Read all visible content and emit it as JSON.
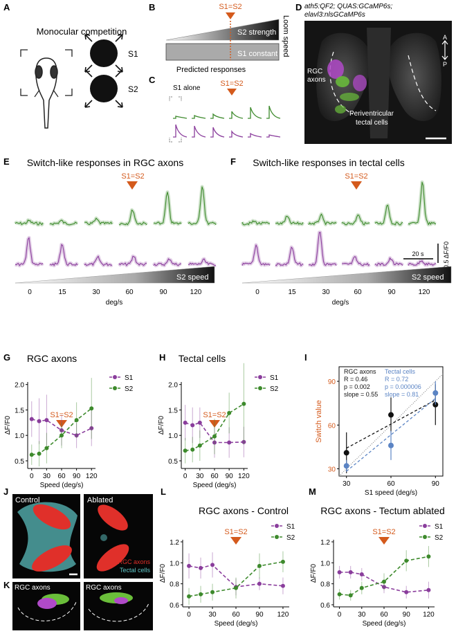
{
  "colors": {
    "green": "#3d8a2c",
    "purple": "#8a3d9c",
    "orange": "#d45a1c",
    "blue": "#5b84c4",
    "black": "#111111",
    "gray_trace": "#cfcfcf"
  },
  "panels": {
    "A": "A",
    "B": "B",
    "C": "C",
    "D": "D",
    "E": "E",
    "F": "F",
    "G": "G",
    "H": "H",
    "I": "I",
    "J": "J",
    "K": "K",
    "L": "L",
    "M": "M"
  },
  "panelA": {
    "title": "Monocular competition",
    "s1": "S1",
    "s2": "S2"
  },
  "panelB": {
    "marker": "S1=S2",
    "s2_label": "S2 strength",
    "s1_label": "S1 constant",
    "side_label": "Loom speed"
  },
  "panelC": {
    "title": "Predicted responses",
    "marker": "S1=S2",
    "s1_alone": "S1 alone"
  },
  "panelD": {
    "genotype_line1": "ath5:QF2; QUAS:GCaMP6s;",
    "genotype_line2": "elavl3:nlsGCaMP6s",
    "rgc_label_1": "RGC",
    "rgc_label_2": "axons",
    "tectal_label_1": "Periventricular",
    "tectal_label_2": "tectal cells",
    "axis_a": "A",
    "axis_p": "P"
  },
  "panelE": {
    "title": "Switch-like responses in RGC axons",
    "marker": "S1=S2",
    "speed_label": "S2 speed",
    "ticks": [
      "0",
      "15",
      "30",
      "60",
      "90",
      "120"
    ],
    "unit": "deg/s"
  },
  "panelF": {
    "title": "Switch-like responses in tectal cells",
    "marker": "S1=S2",
    "speed_label": "S2 speed",
    "ticks": [
      "0",
      "15",
      "30",
      "60",
      "90",
      "120"
    ],
    "unit": "deg/s",
    "scale_dff": "0.5 ΔF/F0",
    "scale_time": "20 s"
  },
  "panelJ": {
    "control": "Control",
    "ablated": "Ablated",
    "legend_rgc": "RGC axons",
    "legend_tectal": "Tectal cells"
  },
  "panelK": {
    "label_left": "RGC axons",
    "label_right": "RGC axons"
  },
  "chart_data": [
    {
      "panel": "G",
      "type": "line",
      "title": "RGC axons",
      "xlabel": "Speed (deg/s)",
      "ylabel": "ΔF/F0",
      "marker": "S1=S2",
      "x": [
        0,
        15,
        30,
        60,
        90,
        120
      ],
      "xlim": [
        -8,
        128
      ],
      "ylim": [
        0.35,
        2.05
      ],
      "xticks": [
        "0",
        "30",
        "60",
        "90",
        "120"
      ],
      "yticks": [
        "0.5",
        "1.0",
        "1.5",
        "2.0"
      ],
      "series": [
        {
          "name": "S1",
          "color": "#8a3d9c",
          "values": [
            1.32,
            1.28,
            1.3,
            1.1,
            1.0,
            1.14
          ],
          "err": [
            0.35,
            0.45,
            0.5,
            0.3,
            0.25,
            0.35
          ]
        },
        {
          "name": "S2",
          "color": "#3d8a2c",
          "values": [
            0.62,
            0.64,
            0.75,
            1.0,
            1.3,
            1.53
          ],
          "err": [
            0.2,
            0.25,
            0.3,
            0.25,
            0.35,
            0.6
          ]
        }
      ]
    },
    {
      "panel": "H",
      "type": "line",
      "title": "Tectal cells",
      "xlabel": "Speed (deg/s)",
      "ylabel": "ΔF/F0",
      "marker": "S1=S2",
      "x": [
        0,
        15,
        30,
        60,
        90,
        120
      ],
      "xlim": [
        -8,
        128
      ],
      "ylim": [
        0.35,
        2.05
      ],
      "xticks": [
        "0",
        "30",
        "60",
        "90",
        "120"
      ],
      "yticks": [
        "0.5",
        "1.0",
        "1.5",
        "2.0"
      ],
      "series": [
        {
          "name": "S1",
          "color": "#8a3d9c",
          "values": [
            1.25,
            1.2,
            1.25,
            0.86,
            0.86,
            0.87
          ],
          "err": [
            0.35,
            0.35,
            0.3,
            0.3,
            0.3,
            0.3
          ]
        },
        {
          "name": "S2",
          "color": "#3d8a2c",
          "values": [
            0.7,
            0.72,
            0.8,
            0.98,
            1.44,
            1.62
          ],
          "err": [
            0.25,
            0.25,
            0.3,
            0.35,
            0.4,
            0.8
          ]
        }
      ]
    },
    {
      "panel": "I",
      "type": "scatter",
      "xlabel": "S1 speed (deg/s)",
      "ylabel": "Switch value",
      "x": [
        30,
        60,
        90
      ],
      "xlim": [
        25,
        95
      ],
      "ylim": [
        25,
        100
      ],
      "xticks": [
        "30",
        "60",
        "90"
      ],
      "yticks": [
        "30",
        "60",
        "90"
      ],
      "series": [
        {
          "name": "RGC axons",
          "color": "#111111",
          "values": [
            41,
            67,
            74
          ],
          "err": [
            14,
            12,
            14
          ],
          "stats": [
            "R = 0.46",
            "p = 0.002",
            "slope = 0.55"
          ]
        },
        {
          "name": "Tectal cells",
          "color": "#5b84c4",
          "values": [
            32,
            46,
            82
          ],
          "err": [
            4,
            10,
            8
          ],
          "stats": [
            "R = 0.72",
            "p = 0.000006",
            "slope = 0.81"
          ]
        }
      ]
    },
    {
      "panel": "L",
      "type": "line",
      "title": "RGC axons - Control",
      "xlabel": "Speed (deg/s)",
      "ylabel": "ΔF/F0",
      "marker": "S1=S2",
      "x": [
        0,
        15,
        30,
        60,
        90,
        120
      ],
      "xlim": [
        -8,
        128
      ],
      "ylim": [
        0.58,
        1.22
      ],
      "xticks": [
        "0",
        "30",
        "60",
        "90",
        "120"
      ],
      "yticks": [
        "0.6",
        "0.8",
        "1.0",
        "1.2"
      ],
      "series": [
        {
          "name": "S1",
          "color": "#8a3d9c",
          "values": [
            0.97,
            0.95,
            0.98,
            0.77,
            0.8,
            0.78
          ],
          "err": [
            0.12,
            0.1,
            0.12,
            0.08,
            0.06,
            0.08
          ]
        },
        {
          "name": "S2",
          "color": "#3d8a2c",
          "values": [
            0.68,
            0.7,
            0.72,
            0.76,
            0.97,
            1.01
          ],
          "err": [
            0.08,
            0.08,
            0.08,
            0.1,
            0.12,
            0.1
          ]
        }
      ]
    },
    {
      "panel": "M",
      "type": "line",
      "title": "RGC axons - Tectum ablated",
      "xlabel": "Speed (deg/s)",
      "ylabel": "ΔF/F0",
      "marker": "S1=S2",
      "x": [
        0,
        15,
        30,
        60,
        90,
        120
      ],
      "xlim": [
        -8,
        128
      ],
      "ylim": [
        0.58,
        1.22
      ],
      "xticks": [
        "0",
        "30",
        "60",
        "90",
        "120"
      ],
      "yticks": [
        "0.6",
        "0.8",
        "1.0",
        "1.2"
      ],
      "series": [
        {
          "name": "S1",
          "color": "#8a3d9c",
          "values": [
            0.91,
            0.91,
            0.89,
            0.77,
            0.72,
            0.74
          ],
          "err": [
            0.06,
            0.06,
            0.06,
            0.06,
            0.06,
            0.08
          ]
        },
        {
          "name": "S2",
          "color": "#3d8a2c",
          "values": [
            0.7,
            0.69,
            0.76,
            0.82,
            1.02,
            1.06
          ],
          "err": [
            0.05,
            0.05,
            0.06,
            0.08,
            0.1,
            0.1
          ]
        }
      ]
    }
  ]
}
